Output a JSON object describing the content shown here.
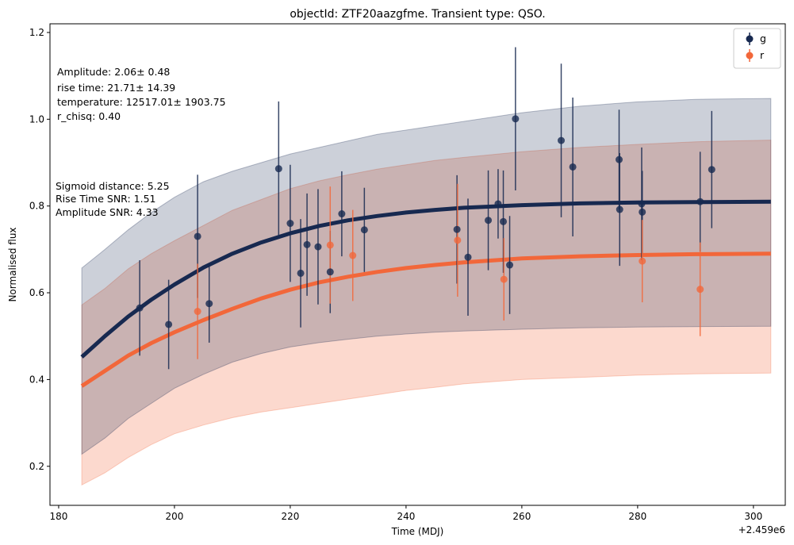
{
  "chart_data": {
    "type": "scatter",
    "title": "objectId: ZTF20aazgfme. Transient type: QSO.",
    "xlabel": "Time (MDJ)",
    "ylabel": "Normalised flux",
    "x_offset_label": "+2.459e6",
    "xlim": [
      178.5,
      305.5
    ],
    "ylim": [
      0.11,
      1.22
    ],
    "x_ticks": [
      180,
      200,
      220,
      240,
      260,
      280,
      300
    ],
    "x_tick_labels": [
      "180",
      "200",
      "220",
      "240",
      "260",
      "280",
      "300"
    ],
    "y_ticks": [
      0.2,
      0.4,
      0.6,
      0.8,
      1.0,
      1.2
    ],
    "y_tick_labels": [
      "0.2",
      "0.4",
      "0.6",
      "0.8",
      "1.0",
      "1.2"
    ],
    "legend_position": "top-right",
    "annotations": [
      "Amplitude: 2.06± 0.48",
      "rise time: 21.71± 14.39",
      "temperature: 12517.01± 1903.75",
      "r_chisq: 0.40",
      "Sigmoid distance: 5.25",
      "Rise Time SNR: 1.51",
      "Amplitude SNR: 4.33"
    ],
    "series": [
      {
        "name": "g",
        "color": "#172950",
        "points": [
          [
            194.0,
            0.565,
            0.11
          ],
          [
            199.0,
            0.527,
            0.103
          ],
          [
            204.0,
            0.73,
            0.142
          ],
          [
            206.0,
            0.575,
            0.09
          ],
          [
            218.0,
            0.886,
            0.155
          ],
          [
            220.0,
            0.76,
            0.135
          ],
          [
            221.8,
            0.645,
            0.125
          ],
          [
            222.9,
            0.711,
            0.118
          ],
          [
            224.8,
            0.706,
            0.133
          ],
          [
            226.9,
            0.648,
            0.095
          ],
          [
            228.9,
            0.782,
            0.098
          ],
          [
            232.8,
            0.745,
            0.097
          ],
          [
            248.8,
            0.746,
            0.125
          ],
          [
            250.7,
            0.682,
            0.135
          ],
          [
            254.2,
            0.767,
            0.115
          ],
          [
            255.9,
            0.805,
            0.08
          ],
          [
            256.8,
            0.764,
            0.118
          ],
          [
            257.9,
            0.664,
            0.113
          ],
          [
            258.9,
            1.001,
            0.165
          ],
          [
            266.8,
            0.951,
            0.177
          ],
          [
            268.8,
            0.89,
            0.16
          ],
          [
            276.8,
            0.907,
            0.115
          ],
          [
            276.9,
            0.792,
            0.13
          ],
          [
            280.7,
            0.805,
            0.13
          ],
          [
            280.8,
            0.786,
            0.095
          ],
          [
            290.8,
            0.81,
            0.115
          ],
          [
            292.8,
            0.884,
            0.135
          ]
        ],
        "fit": [
          [
            184,
            0.452
          ],
          [
            188,
            0.5
          ],
          [
            192,
            0.545
          ],
          [
            196,
            0.584
          ],
          [
            200,
            0.619
          ],
          [
            205,
            0.658
          ],
          [
            210,
            0.69
          ],
          [
            215,
            0.716
          ],
          [
            220,
            0.737
          ],
          [
            225,
            0.754
          ],
          [
            230,
            0.767
          ],
          [
            235,
            0.777
          ],
          [
            240,
            0.785
          ],
          [
            245,
            0.791
          ],
          [
            250,
            0.796
          ],
          [
            260,
            0.802
          ],
          [
            270,
            0.806
          ],
          [
            280,
            0.808
          ],
          [
            290,
            0.809
          ],
          [
            303,
            0.81
          ]
        ],
        "band_upper": [
          [
            184,
            0.657
          ],
          [
            188,
            0.7
          ],
          [
            192,
            0.745
          ],
          [
            196,
            0.785
          ],
          [
            200,
            0.82
          ],
          [
            205,
            0.856
          ],
          [
            210,
            0.88
          ],
          [
            215,
            0.9
          ],
          [
            220,
            0.92
          ],
          [
            225,
            0.935
          ],
          [
            230,
            0.95
          ],
          [
            235,
            0.965
          ],
          [
            240,
            0.975
          ],
          [
            245,
            0.985
          ],
          [
            250,
            0.995
          ],
          [
            260,
            1.015
          ],
          [
            270,
            1.03
          ],
          [
            280,
            1.04
          ],
          [
            290,
            1.046
          ],
          [
            303,
            1.048
          ]
        ],
        "band_lower": [
          [
            184,
            0.228
          ],
          [
            188,
            0.265
          ],
          [
            192,
            0.31
          ],
          [
            196,
            0.345
          ],
          [
            200,
            0.38
          ],
          [
            205,
            0.412
          ],
          [
            210,
            0.44
          ],
          [
            215,
            0.46
          ],
          [
            220,
            0.475
          ],
          [
            225,
            0.485
          ],
          [
            230,
            0.493
          ],
          [
            235,
            0.5
          ],
          [
            240,
            0.505
          ],
          [
            245,
            0.509
          ],
          [
            250,
            0.512
          ],
          [
            260,
            0.516
          ],
          [
            270,
            0.519
          ],
          [
            280,
            0.521
          ],
          [
            290,
            0.522
          ],
          [
            303,
            0.523
          ]
        ]
      },
      {
        "name": "r",
        "color": "#F2673A",
        "points": [
          [
            204.0,
            0.557,
            0.11
          ],
          [
            226.9,
            0.71,
            0.135
          ],
          [
            230.8,
            0.686,
            0.105
          ],
          [
            248.9,
            0.721,
            0.13
          ],
          [
            256.9,
            0.631,
            0.095
          ],
          [
            280.8,
            0.673,
            0.095
          ],
          [
            290.8,
            0.608,
            0.108
          ]
        ],
        "fit": [
          [
            184,
            0.385
          ],
          [
            188,
            0.42
          ],
          [
            192,
            0.455
          ],
          [
            196,
            0.484
          ],
          [
            200,
            0.509
          ],
          [
            205,
            0.537
          ],
          [
            210,
            0.563
          ],
          [
            215,
            0.587
          ],
          [
            220,
            0.607
          ],
          [
            225,
            0.624
          ],
          [
            230,
            0.637
          ],
          [
            235,
            0.648
          ],
          [
            240,
            0.657
          ],
          [
            245,
            0.664
          ],
          [
            250,
            0.67
          ],
          [
            260,
            0.679
          ],
          [
            270,
            0.684
          ],
          [
            280,
            0.687
          ],
          [
            290,
            0.689
          ],
          [
            303,
            0.69
          ]
        ],
        "band_upper": [
          [
            184,
            0.572
          ],
          [
            188,
            0.61
          ],
          [
            192,
            0.655
          ],
          [
            196,
            0.69
          ],
          [
            200,
            0.72
          ],
          [
            205,
            0.755
          ],
          [
            210,
            0.79
          ],
          [
            215,
            0.815
          ],
          [
            220,
            0.84
          ],
          [
            225,
            0.858
          ],
          [
            230,
            0.872
          ],
          [
            235,
            0.885
          ],
          [
            240,
            0.895
          ],
          [
            245,
            0.905
          ],
          [
            250,
            0.912
          ],
          [
            260,
            0.925
          ],
          [
            270,
            0.935
          ],
          [
            280,
            0.942
          ],
          [
            290,
            0.948
          ],
          [
            303,
            0.952
          ]
        ],
        "band_lower": [
          [
            184,
            0.157
          ],
          [
            188,
            0.185
          ],
          [
            192,
            0.22
          ],
          [
            196,
            0.25
          ],
          [
            200,
            0.275
          ],
          [
            205,
            0.295
          ],
          [
            210,
            0.312
          ],
          [
            215,
            0.325
          ],
          [
            220,
            0.335
          ],
          [
            225,
            0.345
          ],
          [
            230,
            0.355
          ],
          [
            235,
            0.365
          ],
          [
            240,
            0.375
          ],
          [
            245,
            0.382
          ],
          [
            250,
            0.39
          ],
          [
            260,
            0.4
          ],
          [
            270,
            0.405
          ],
          [
            280,
            0.41
          ],
          [
            290,
            0.413
          ],
          [
            303,
            0.415
          ]
        ]
      }
    ]
  }
}
